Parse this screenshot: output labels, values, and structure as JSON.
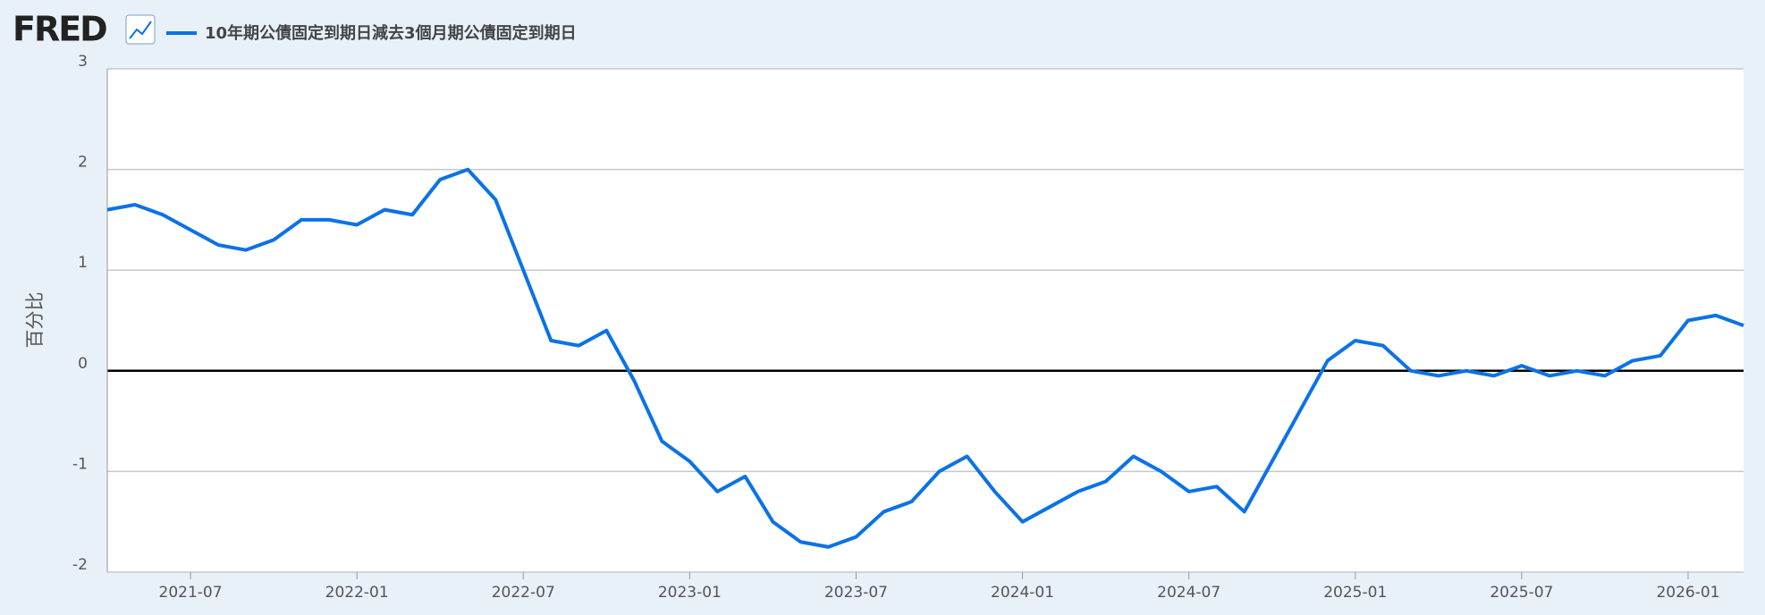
{
  "header": {
    "logo": "FRED"
  },
  "chart_data": {
    "type": "line",
    "y_label": "百分比",
    "x": [
      "2021-04",
      "2021-05",
      "2021-06",
      "2021-07",
      "2021-08",
      "2021-09",
      "2021-10",
      "2021-11",
      "2021-12",
      "2022-01",
      "2022-02",
      "2022-03",
      "2022-04",
      "2022-05",
      "2022-06",
      "2022-07",
      "2022-08",
      "2022-09",
      "2022-10",
      "2022-11",
      "2022-12",
      "2023-01",
      "2023-02",
      "2023-03",
      "2023-04",
      "2023-05",
      "2023-06",
      "2023-07",
      "2023-08",
      "2023-09",
      "2023-10",
      "2023-11",
      "2023-12",
      "2024-01",
      "2024-02",
      "2024-03",
      "2024-04",
      "2024-05",
      "2024-06",
      "2024-07",
      "2024-08",
      "2024-09",
      "2024-10",
      "2024-11",
      "2024-12",
      "2025-01",
      "2025-02",
      "2025-03",
      "2025-04",
      "2025-05",
      "2025-06",
      "2025-07",
      "2025-08",
      "2025-09",
      "2025-10",
      "2025-11",
      "2025-12",
      "2026-01",
      "2026-02",
      "2026-03"
    ],
    "series": [
      {
        "name": "10年期公債固定到期日減去3個月期公債固定到期日",
        "color": "#0b72e7",
        "values": [
          1.6,
          1.65,
          1.55,
          1.4,
          1.25,
          1.2,
          1.3,
          1.5,
          1.5,
          1.45,
          1.6,
          1.55,
          1.9,
          2.0,
          1.7,
          1.0,
          0.3,
          0.25,
          0.4,
          -0.1,
          -0.7,
          -0.9,
          -1.2,
          -1.05,
          -1.5,
          -1.7,
          -1.75,
          -1.65,
          -1.4,
          -1.3,
          -1.0,
          -0.85,
          -1.2,
          -1.5,
          -1.35,
          -1.2,
          -1.1,
          -0.85,
          -1.0,
          -1.2,
          -1.15,
          -1.4,
          -0.9,
          -0.4,
          0.1,
          0.3,
          0.25,
          0.0,
          -0.05,
          0.0,
          -0.05,
          0.05,
          -0.05,
          0.0,
          -0.05,
          0.1,
          0.15,
          0.5,
          0.55,
          0.45
        ]
      }
    ],
    "xlim": [
      "2021-04",
      "2026-03"
    ],
    "xticks": [
      "2021-07",
      "2022-01",
      "2022-07",
      "2023-01",
      "2023-07",
      "2024-01",
      "2024-07",
      "2025-01",
      "2025-07",
      "2026-01"
    ],
    "ylim": [
      -2,
      3
    ],
    "yticks": [
      -2,
      -1,
      0,
      1,
      2,
      3
    ],
    "grid": true
  }
}
